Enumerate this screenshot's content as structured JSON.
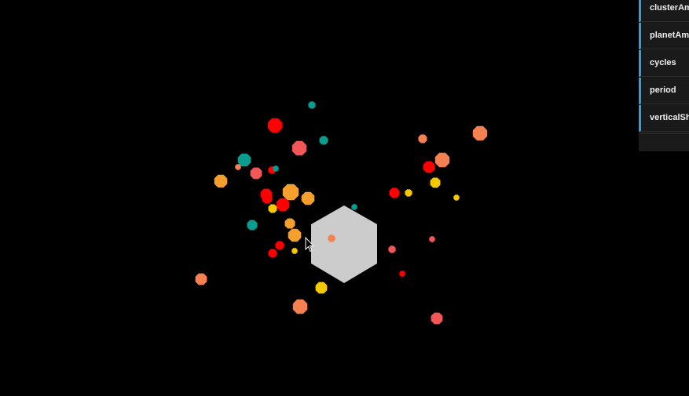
{
  "colors": {
    "background": "#000000",
    "hexagon": "#cccccc",
    "red": "#ff0000",
    "coral": "#f25757",
    "orange": "#f58152",
    "amber": "#f5a02c",
    "yellow": "#f5c800",
    "teal": "#0a9c8e",
    "controls_accent": "#2fa1d6"
  },
  "controls": {
    "items": [
      {
        "label": "clusterAmp"
      },
      {
        "label": "planetAmp"
      },
      {
        "label": "cycles"
      },
      {
        "label": "period"
      },
      {
        "label": "verticalShift"
      }
    ]
  },
  "cursor": {
    "icon": "mouse-pointer-icon"
  }
}
